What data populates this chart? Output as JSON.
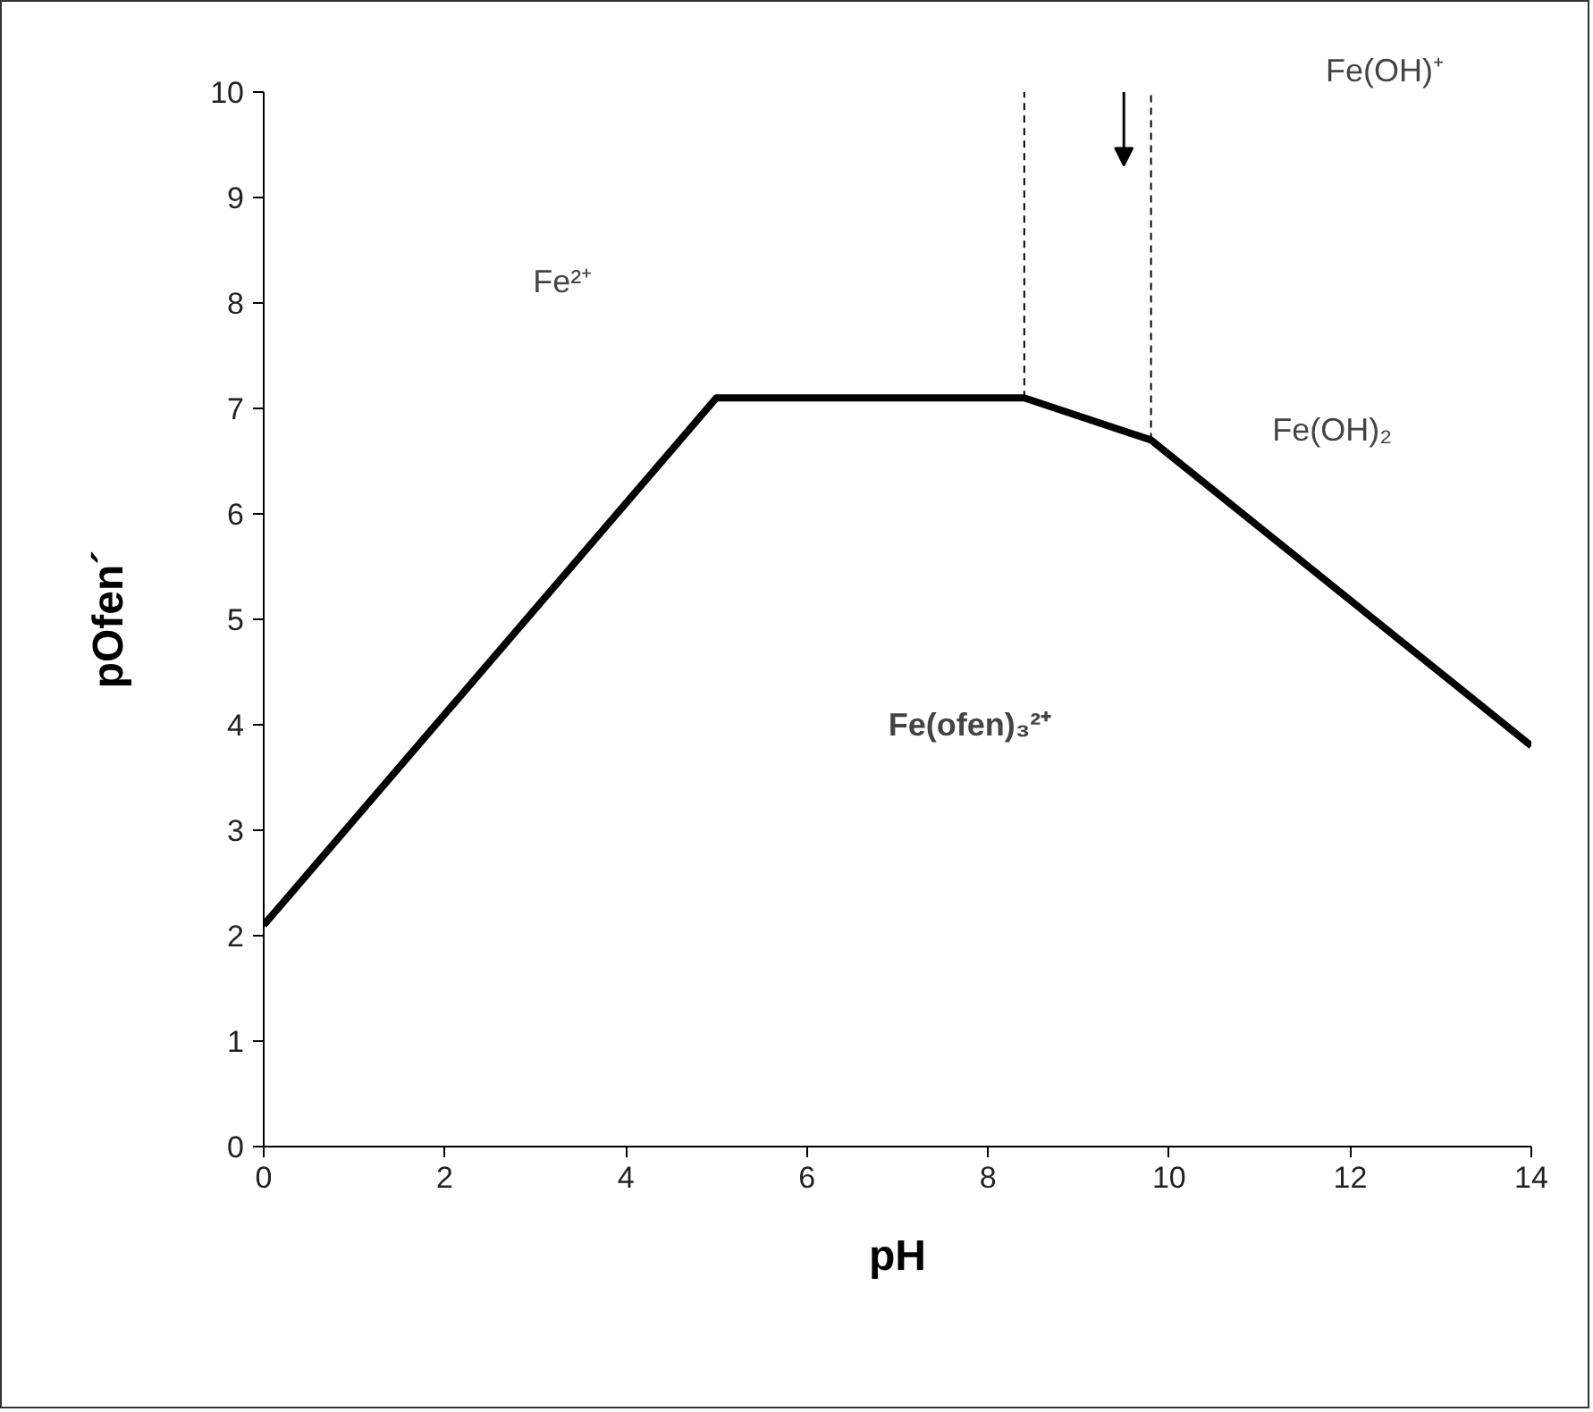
{
  "chart_data": {
    "type": "line",
    "xlabel": "pH",
    "ylabel": "pOfen´",
    "xlim": [
      0,
      14
    ],
    "xticks": [
      0,
      2,
      4,
      6,
      8,
      10,
      12,
      14
    ],
    "ylim": [
      0,
      10
    ],
    "yticks": [
      0,
      1,
      2,
      3,
      4,
      5,
      6,
      7,
      8,
      9,
      10
    ],
    "grid": false,
    "marker": "none",
    "series": [
      {
        "x": [
          0,
          5,
          8.4,
          9.8,
          14
        ],
        "values": [
          2.1,
          7.1,
          7.1,
          6.7,
          3.8
        ],
        "color": "#000000",
        "line_style": "solid"
      },
      {
        "x": [
          8.4,
          8.4
        ],
        "values": [
          7.1,
          10
        ],
        "color": "#000000",
        "line_style": "dashed"
      },
      {
        "x": [
          9.8,
          9.8
        ],
        "values": [
          6.7,
          10
        ],
        "color": "#000000",
        "line_style": "dashed"
      }
    ],
    "annotations": [
      "Fe²⁺",
      "Fe(OH)⁺",
      "Fe(OH)₂",
      "Fe(ofen)₃²⁺"
    ]
  }
}
